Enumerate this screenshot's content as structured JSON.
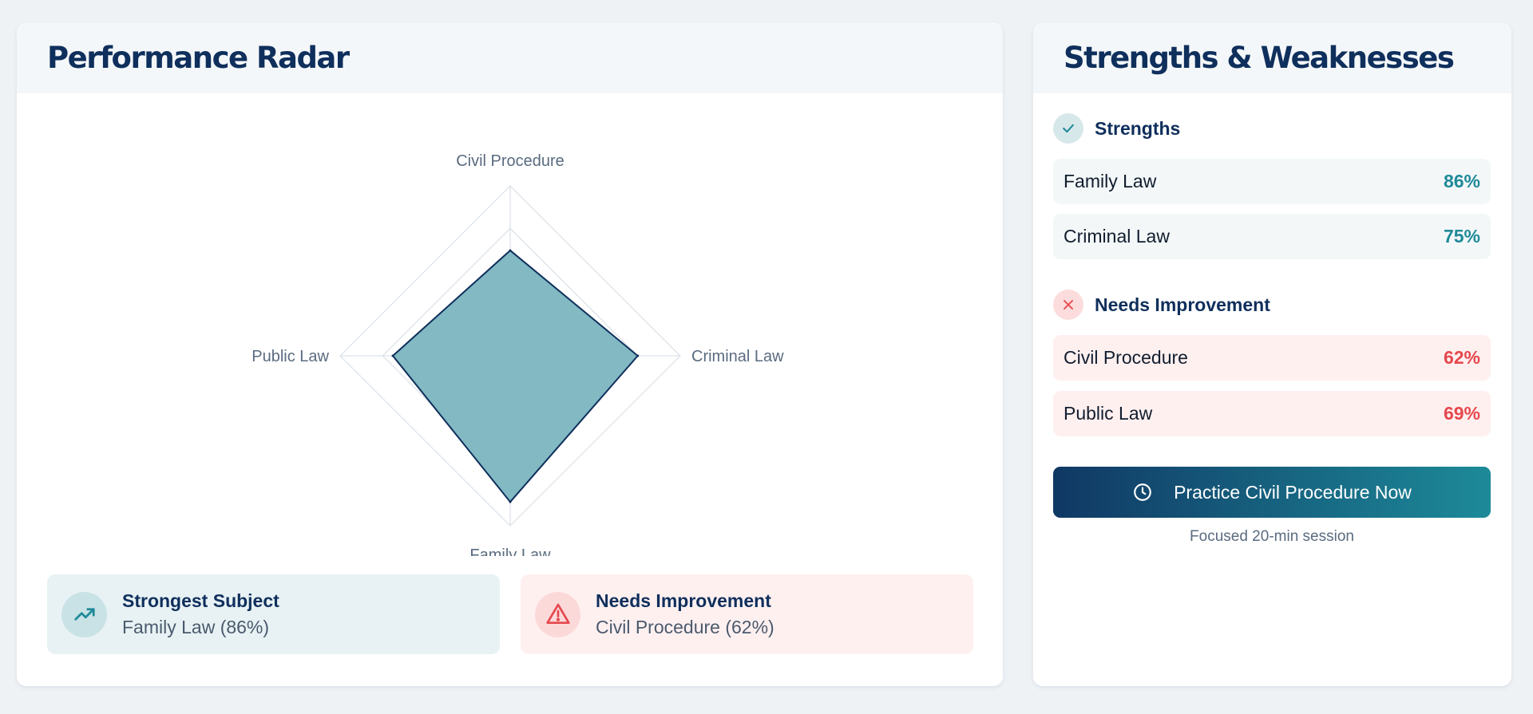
{
  "radar_panel": {
    "title": "Performance Radar",
    "axes": [
      {
        "label": "Civil Procedure",
        "value": 62
      },
      {
        "label": "Criminal Law",
        "value": 75
      },
      {
        "label": "Family Law",
        "value": 86
      },
      {
        "label": "Public Law",
        "value": 69
      }
    ],
    "max": 100,
    "levels": 4,
    "colors": {
      "fill": "#7fb8c2",
      "stroke": "#0f2f5c",
      "grid": "#dde3ea"
    },
    "strongest": {
      "title": "Strongest Subject",
      "value": "Family Law (86%)",
      "icon": "trending-up-icon"
    },
    "weakest": {
      "title": "Needs Improvement",
      "value": "Civil Procedure (62%)",
      "icon": "warning-triangle-icon"
    }
  },
  "sw_panel": {
    "title": "Strengths & Weaknesses",
    "strengths": {
      "title": "Strengths",
      "icon": "check-icon",
      "items": [
        {
          "label": "Family Law",
          "value": "86%"
        },
        {
          "label": "Criminal Law",
          "value": "75%"
        }
      ]
    },
    "weaknesses": {
      "title": "Needs Improvement",
      "icon": "x-icon",
      "items": [
        {
          "label": "Civil Procedure",
          "value": "62%"
        },
        {
          "label": "Public Law",
          "value": "69%"
        }
      ]
    },
    "cta": {
      "label": "Practice Civil Procedure Now",
      "icon": "clock-icon",
      "note": "Focused 20-min session"
    },
    "colors": {
      "good": "#1f8a98",
      "bad": "#e5484d",
      "navy": "#0f2f5c"
    }
  }
}
